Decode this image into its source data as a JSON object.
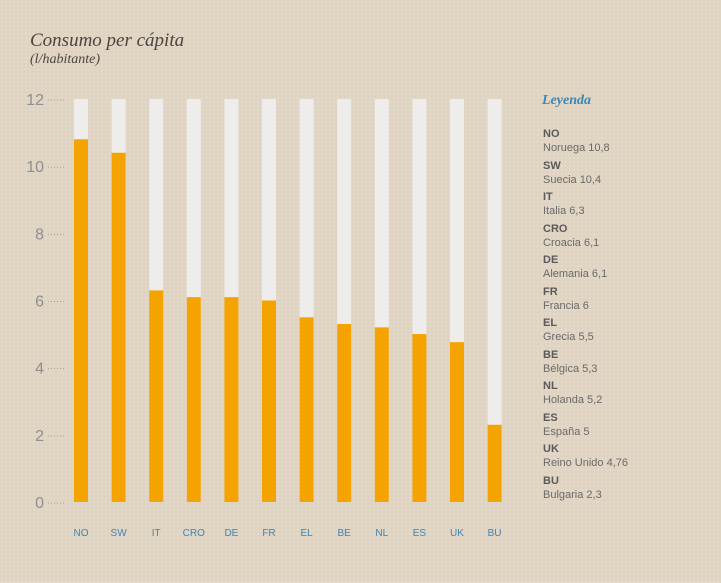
{
  "chart_data": {
    "type": "bar",
    "title": "Consumo per cápita",
    "subtitle": "(l/habitante)",
    "categories": [
      "NO",
      "SW",
      "IT",
      "CRO",
      "DE",
      "FR",
      "EL",
      "BE",
      "NL",
      "ES",
      "UK",
      "BU"
    ],
    "values": [
      10.8,
      10.4,
      6.3,
      6.1,
      6.1,
      6,
      5.5,
      5.3,
      5.2,
      5,
      4.76,
      2.3
    ],
    "ylim": [
      0,
      12
    ],
    "yticks": [
      0,
      2,
      4,
      6,
      8,
      10,
      12
    ],
    "legend_title": "Leyenda",
    "legend": [
      {
        "code": "NO",
        "label": "Noruega 10,8"
      },
      {
        "code": "SW",
        "label": "Suecia 10,4"
      },
      {
        "code": "IT",
        "label": "Italia 6,3"
      },
      {
        "code": "CRO",
        "label": "Croacia 6,1"
      },
      {
        "code": "DE",
        "label": "Alemania 6,1"
      },
      {
        "code": "FR",
        "label": "Francia 6"
      },
      {
        "code": "EL",
        "label": "Grecia 5,5"
      },
      {
        "code": "BE",
        "label": "Bélgica 5,3"
      },
      {
        "code": "NL",
        "label": "Holanda 5,2"
      },
      {
        "code": "ES",
        "label": "España 5"
      },
      {
        "code": "UK",
        "label": "Reino Unido 4,76"
      },
      {
        "code": "BU",
        "label": "Bulgaria 2,3"
      }
    ],
    "colors": {
      "bar": "#f5a300",
      "track": "#efedeb",
      "tick_label": "#8f8f8f",
      "category_label": "#3a86b8"
    },
    "legend_placement": "right",
    "grid": false
  }
}
